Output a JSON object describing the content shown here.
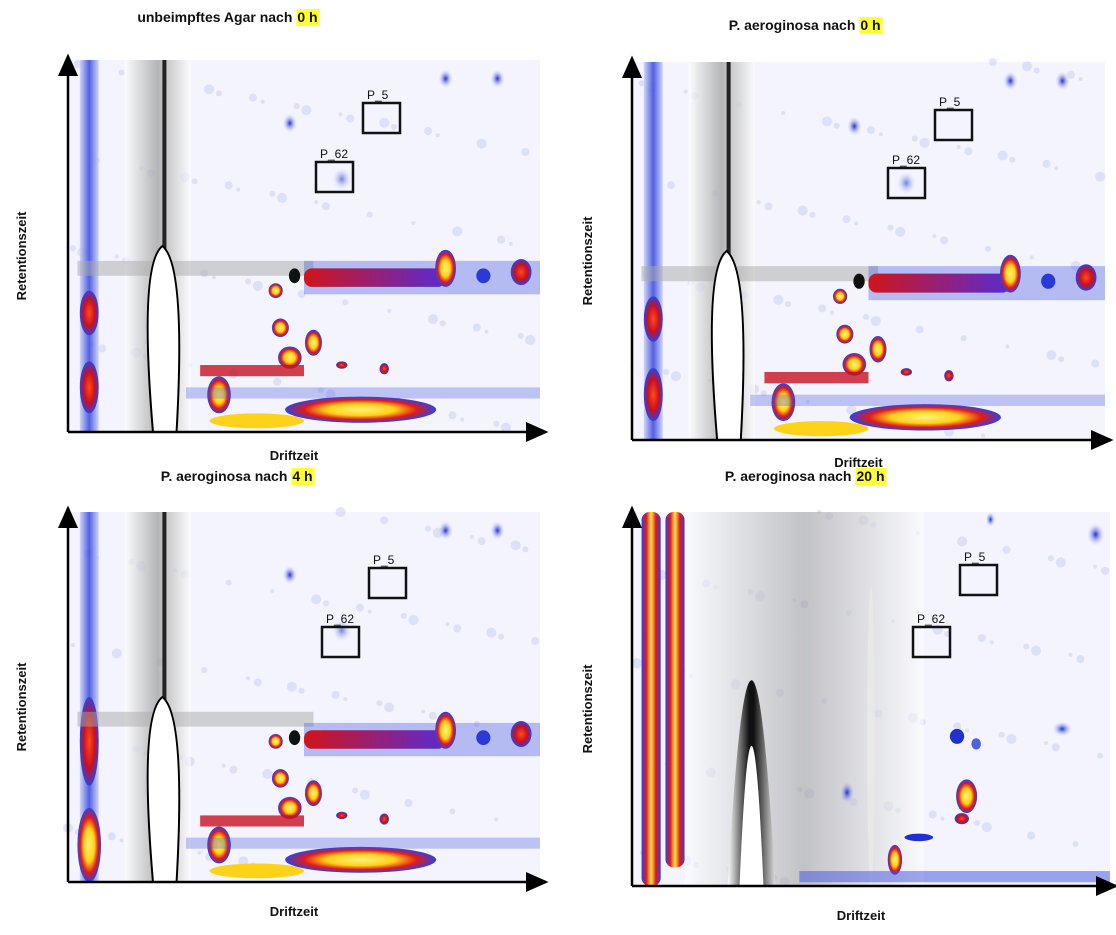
{
  "panels": [
    {
      "title": {
        "text": "unbeimpftes Agar nach",
        "time": "0 h"
      },
      "y_label": "Retentionszeit",
      "x_label": "Driftzeit",
      "boxes": [
        {
          "label": "P_5"
        },
        {
          "label": "P_62"
        }
      ]
    },
    {
      "title": {
        "text": "P. aeroginosa nach",
        "time": "0 h"
      },
      "y_label": "Retentionszeit",
      "x_label": "Driftzeit",
      "boxes": [
        {
          "label": "P_5"
        },
        {
          "label": "P_62"
        }
      ]
    },
    {
      "title": {
        "text": "P. aeroginosa nach",
        "time": "4 h"
      },
      "y_label": "Retentionszeit",
      "x_label": "Driftzeit",
      "boxes": [
        {
          "label": "P_5"
        },
        {
          "label": "P_62"
        }
      ]
    },
    {
      "title": {
        "text": "P. aeroginosa nach",
        "time": "20 h"
      },
      "y_label": "Retentionszeit",
      "x_label": "Driftzeit",
      "boxes": [
        {
          "label": "P_5"
        },
        {
          "label": "P_62"
        }
      ]
    }
  ]
}
